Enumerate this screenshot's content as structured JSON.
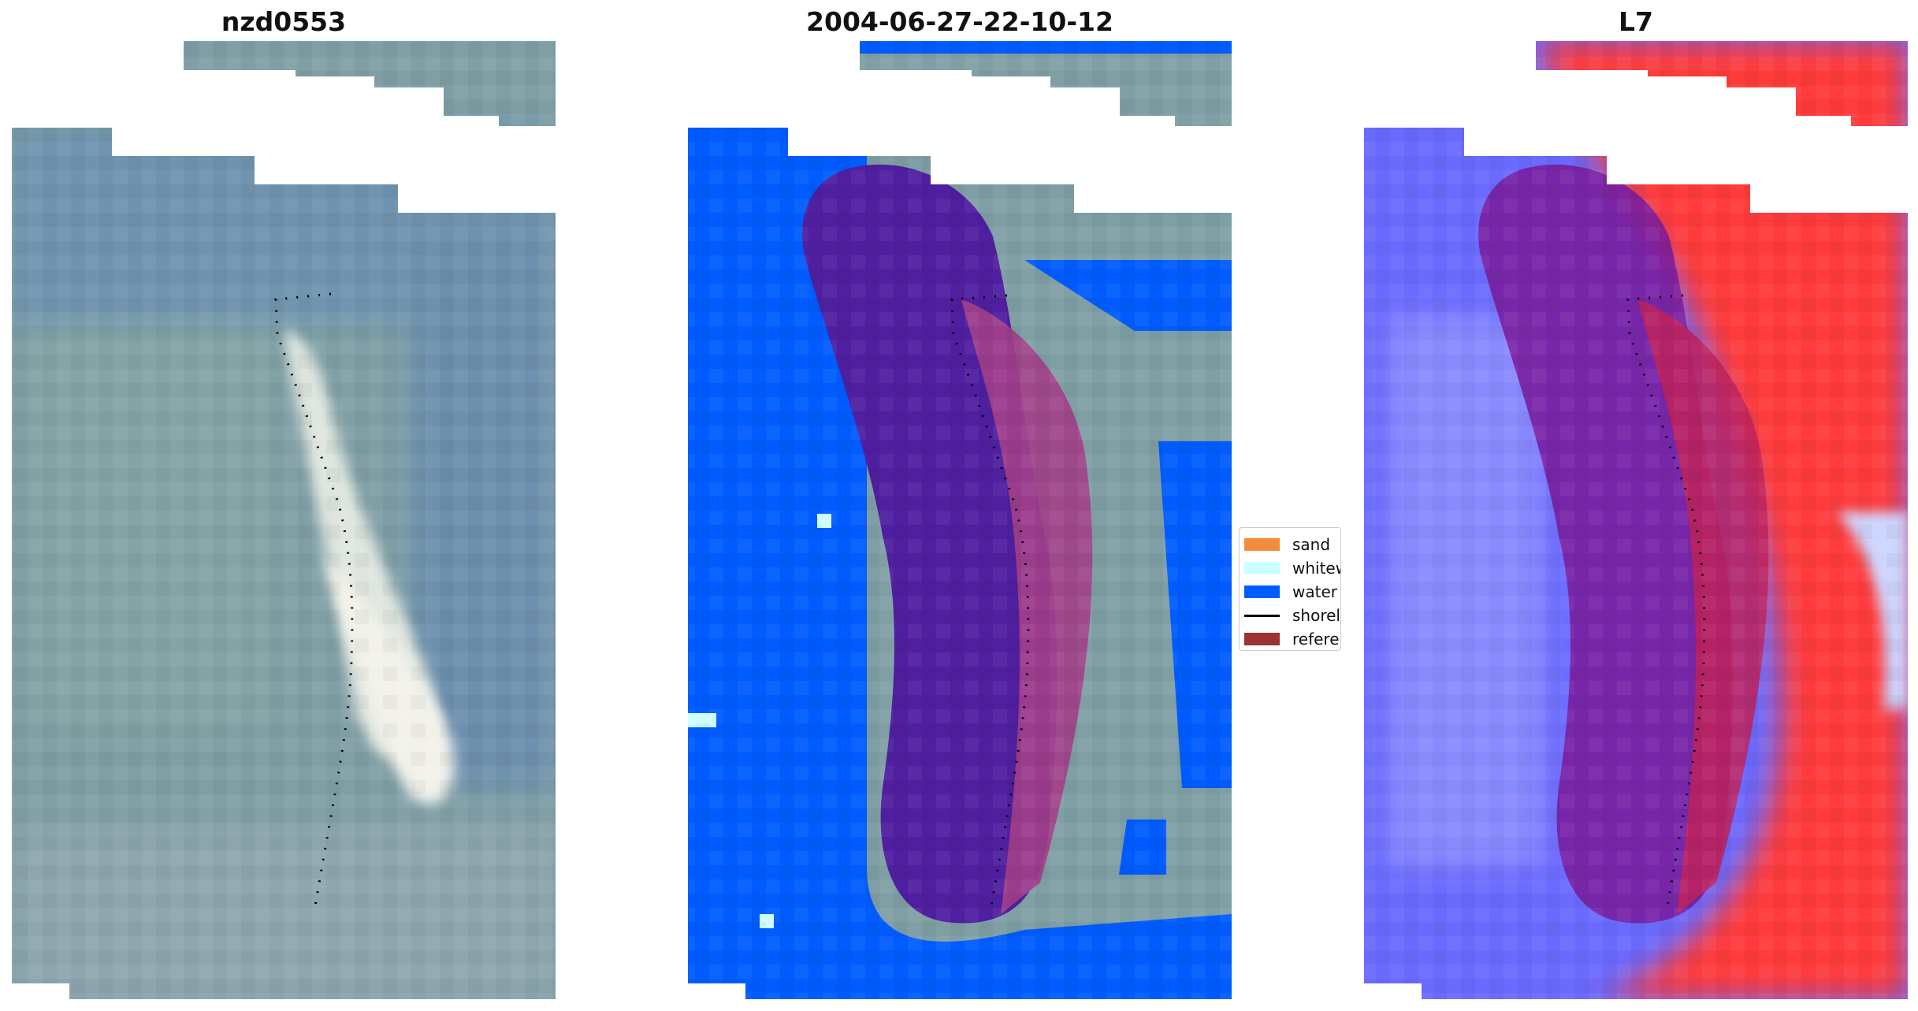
{
  "panels": [
    {
      "title": "nzd0553",
      "kind": "rgb-image"
    },
    {
      "title": "2004-06-27-22-10-12",
      "kind": "classified-image"
    },
    {
      "title": "L7",
      "kind": "index-image"
    }
  ],
  "legend": [
    {
      "label": "sand",
      "color": "#f28c3c"
    },
    {
      "label": "whitewater",
      "color": "#ccffff"
    },
    {
      "label": "water",
      "color": "#005cff"
    },
    {
      "label": "shoreline",
      "color": "#000000",
      "type": "line"
    },
    {
      "label": "reference",
      "color": "#9b3333"
    }
  ],
  "colors": {
    "image_base": "#7f9fa5",
    "image_blue": "#5f8caf",
    "sand_bright": "#e8ece4",
    "water_class": "#005cff",
    "reference_overlay": "#4f1fa0",
    "index_blue": "#6a6aff",
    "index_red": "#ff3030"
  }
}
